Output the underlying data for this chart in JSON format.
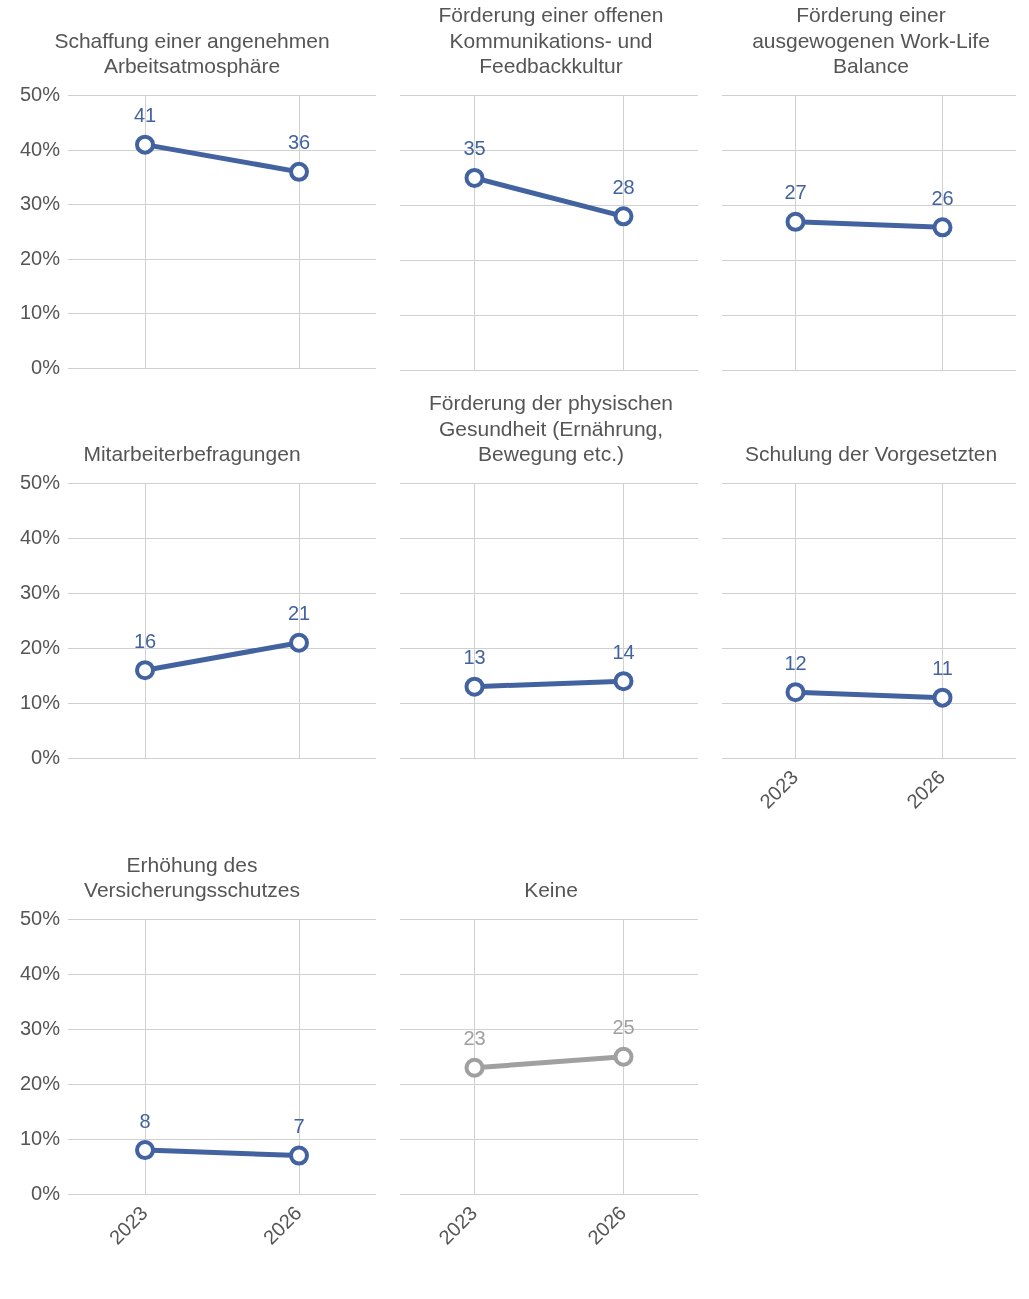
{
  "chart_data": [
    {
      "type": "line",
      "title": "Schaffung einer angenehmen Arbeitsatmosphäre",
      "categories": [
        "2023",
        "2026"
      ],
      "series": [
        {
          "color": "#4263a0",
          "values": [
            41,
            36
          ]
        }
      ],
      "ylim": [
        0,
        50
      ],
      "yticks": [
        {
          "value": 0,
          "label": "0%"
        },
        {
          "value": 10,
          "label": "10%"
        },
        {
          "value": 20,
          "label": "20%"
        },
        {
          "value": 30,
          "label": "30%"
        },
        {
          "value": 40,
          "label": "40%"
        },
        {
          "value": 50,
          "label": "50%"
        }
      ],
      "grid": true,
      "marker": "circle",
      "data_labels": true,
      "tick_labels": "y"
    },
    {
      "type": "line",
      "title": "Förderung einer offenen Kommunikations- und Feedbackkultur",
      "categories": [
        "2023",
        "2026"
      ],
      "series": [
        {
          "color": "#4263a0",
          "values": [
            35,
            28
          ]
        }
      ],
      "ylim": [
        0,
        50
      ],
      "yticks": [
        0,
        10,
        20,
        30,
        40,
        50
      ],
      "grid": true,
      "marker": "circle",
      "data_labels": true,
      "tick_labels": false
    },
    {
      "type": "line",
      "title": "Förderung einer ausgewogenen Work-Life Balance",
      "categories": [
        "2023",
        "2026"
      ],
      "series": [
        {
          "color": "#4263a0",
          "values": [
            27,
            26
          ]
        }
      ],
      "ylim": [
        0,
        50
      ],
      "yticks": [
        0,
        10,
        20,
        30,
        40,
        50
      ],
      "grid": true,
      "marker": "circle",
      "data_labels": true,
      "tick_labels": false
    },
    {
      "type": "line",
      "title": "Mitarbeiterbefragungen",
      "categories": [
        "2023",
        "2026"
      ],
      "series": [
        {
          "color": "#4263a0",
          "values": [
            16,
            21
          ]
        }
      ],
      "ylim": [
        0,
        50
      ],
      "yticks": [
        {
          "value": 0,
          "label": "0%"
        },
        {
          "value": 10,
          "label": "10%"
        },
        {
          "value": 20,
          "label": "20%"
        },
        {
          "value": 30,
          "label": "30%"
        },
        {
          "value": 40,
          "label": "40%"
        },
        {
          "value": 50,
          "label": "50%"
        }
      ],
      "grid": true,
      "marker": "circle",
      "data_labels": true,
      "tick_labels": "y"
    },
    {
      "type": "line",
      "title": "Förderung der physischen Gesundheit (Ernährung, Bewegung etc.)",
      "categories": [
        "2023",
        "2026"
      ],
      "series": [
        {
          "color": "#4263a0",
          "values": [
            13,
            14
          ]
        }
      ],
      "ylim": [
        0,
        50
      ],
      "yticks": [
        0,
        10,
        20,
        30,
        40,
        50
      ],
      "grid": true,
      "marker": "circle",
      "data_labels": true,
      "tick_labels": false
    },
    {
      "type": "line",
      "title": "Schulung der Vorgesetzten",
      "categories": [
        "2023",
        "2026"
      ],
      "series": [
        {
          "color": "#4263a0",
          "values": [
            12,
            11
          ]
        }
      ],
      "ylim": [
        0,
        50
      ],
      "yticks": [
        0,
        10,
        20,
        30,
        40,
        50
      ],
      "grid": true,
      "marker": "circle",
      "data_labels": true,
      "tick_labels": "x"
    },
    {
      "type": "line",
      "title": "Erhöhung des Versicherungsschutzes",
      "categories": [
        "2023",
        "2026"
      ],
      "series": [
        {
          "color": "#4263a0",
          "values": [
            8,
            7
          ]
        }
      ],
      "ylim": [
        0,
        50
      ],
      "yticks": [
        {
          "value": 0,
          "label": "0%"
        },
        {
          "value": 10,
          "label": "10%"
        },
        {
          "value": 20,
          "label": "20%"
        },
        {
          "value": 30,
          "label": "30%"
        },
        {
          "value": 40,
          "label": "40%"
        },
        {
          "value": 50,
          "label": "50%"
        }
      ],
      "grid": true,
      "marker": "circle",
      "data_labels": true
    },
    {
      "type": "line",
      "title": "Keine",
      "categories": [
        "2023",
        "2026"
      ],
      "series": [
        {
          "color": "#a0a0a0",
          "values": [
            23,
            25
          ]
        }
      ],
      "ylim": [
        0,
        50
      ],
      "yticks": [
        0,
        10,
        20,
        30,
        40,
        50
      ],
      "grid": true,
      "marker": "circle",
      "data_labels": true,
      "tick_labels": "x"
    }
  ]
}
